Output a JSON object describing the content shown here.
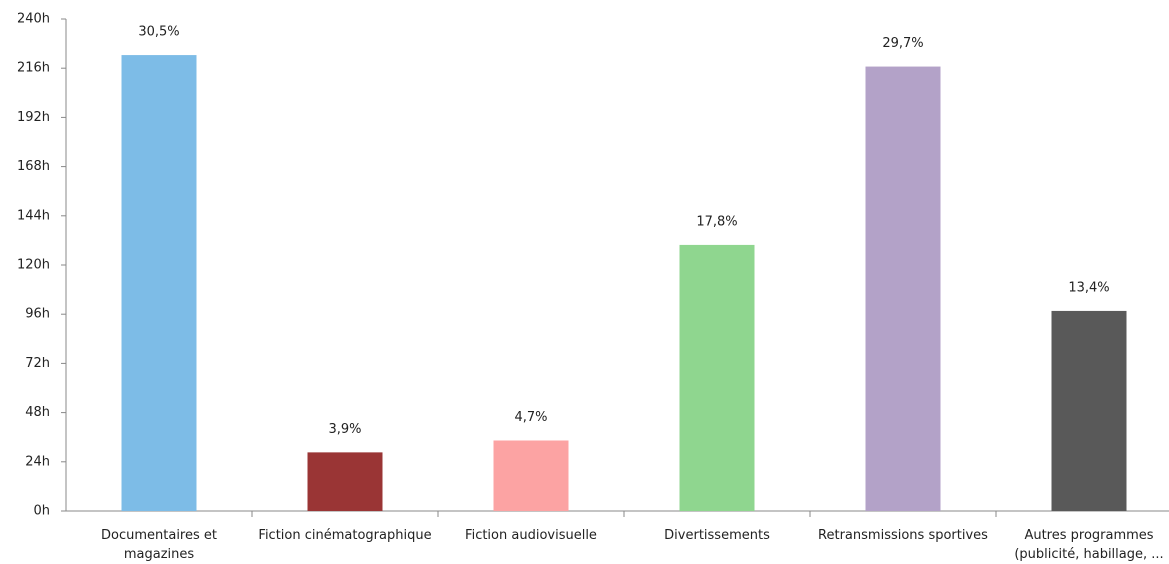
{
  "chart_data": {
    "type": "bar",
    "categories": [
      "Documentaires et magazines",
      "Fiction cinématographique",
      "Fiction audiovisuelle",
      "Divertissements",
      "Retransmissions sportives",
      "Autres programmes (publicité, habillage, ..."
    ],
    "values": [
      222.4,
      28.6,
      34.4,
      129.8,
      216.8,
      97.6
    ],
    "shares": [
      30.5,
      3.9,
      4.7,
      17.8,
      29.7,
      13.4
    ],
    "share_labels": [
      "30,5%",
      "3,9%",
      "4,7%",
      "17,8%",
      "29,7%",
      "13,4%"
    ],
    "colors": [
      "#7dbce7",
      "#9a3535",
      "#fca3a3",
      "#8fd68f",
      "#b3a2c8",
      "#595959"
    ],
    "ylim": [
      0,
      240
    ],
    "yticks": [
      {
        "value": 0,
        "label": "0h"
      },
      {
        "value": 24,
        "label": "24h"
      },
      {
        "value": 48,
        "label": "48h"
      },
      {
        "value": 72,
        "label": "72h"
      },
      {
        "value": 96,
        "label": "96h"
      },
      {
        "value": 120,
        "label": "120h"
      },
      {
        "value": 144,
        "label": "144h"
      },
      {
        "value": 168,
        "label": "168h"
      },
      {
        "value": 192,
        "label": "192h"
      },
      {
        "value": 216,
        "label": "216h"
      },
      {
        "value": 240,
        "label": "240h"
      }
    ]
  }
}
